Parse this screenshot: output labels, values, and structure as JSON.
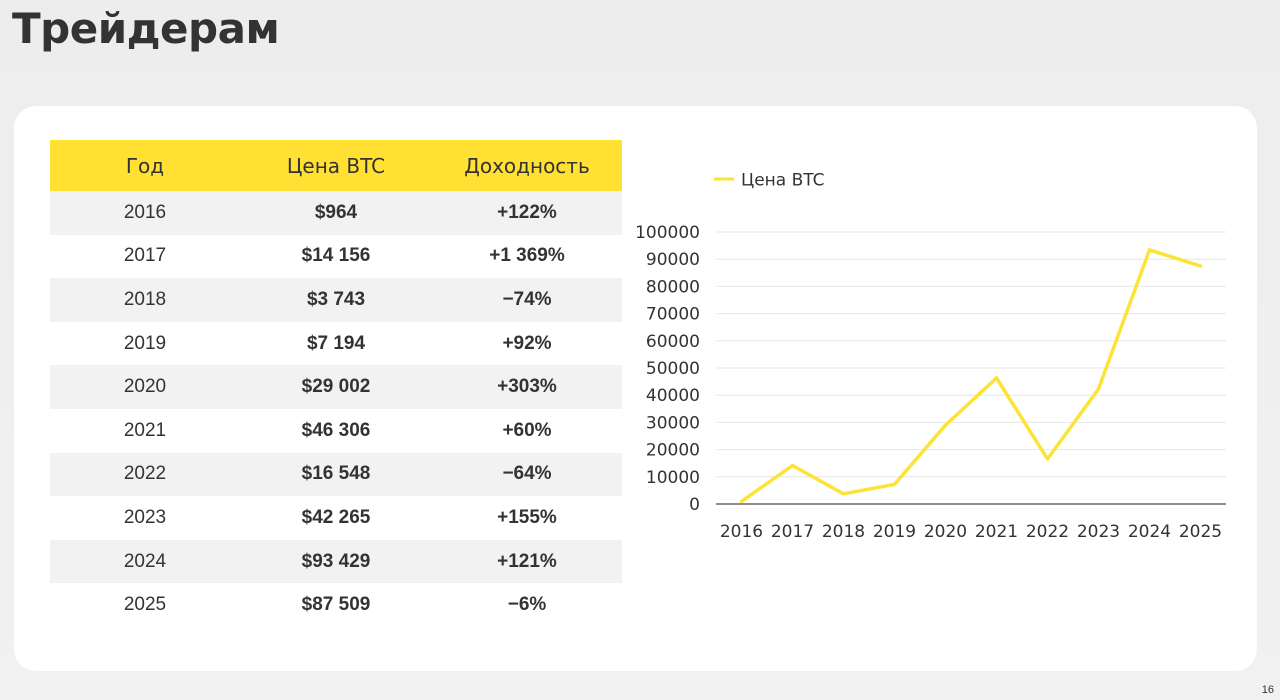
{
  "page": {
    "title": "Трейдерам",
    "page_number": "16"
  },
  "colors": {
    "accent": "#ffe033",
    "line": "#fce335",
    "text": "#333333",
    "stripe": "#f2f2f2"
  },
  "table": {
    "headers": [
      "Год",
      "Цена BTC",
      "Доходность"
    ],
    "rows": [
      [
        "2016",
        "$964",
        "+122%"
      ],
      [
        "2017",
        "$14 156",
        "+1 369%"
      ],
      [
        "2018",
        "$3 743",
        "−74%"
      ],
      [
        "2019",
        "$7 194",
        "+92%"
      ],
      [
        "2020",
        "$29 002",
        "+303%"
      ],
      [
        "2021",
        "$46 306",
        "+60%"
      ],
      [
        "2022",
        "$16 548",
        "−64%"
      ],
      [
        "2023",
        "$42 265",
        "+155%"
      ],
      [
        "2024",
        "$93 429",
        "+121%"
      ],
      [
        "2025",
        "$87 509",
        "−6%"
      ]
    ]
  },
  "chart_data": {
    "type": "line",
    "title": "",
    "xlabel": "",
    "ylabel": "",
    "x": [
      "2016",
      "2017",
      "2018",
      "2019",
      "2020",
      "2021",
      "2022",
      "2023",
      "2024",
      "2025"
    ],
    "series": [
      {
        "name": "Цена BTC",
        "values": [
          964,
          14156,
          3743,
          7194,
          29002,
          46306,
          16548,
          42265,
          93429,
          87509
        ]
      }
    ],
    "ylim": [
      0,
      100000
    ],
    "yticks": [
      "0",
      "10000",
      "20000",
      "30000",
      "40000",
      "50000",
      "60000",
      "70000",
      "80000",
      "90000",
      "100000"
    ],
    "grid": true,
    "legend": "top-left"
  }
}
